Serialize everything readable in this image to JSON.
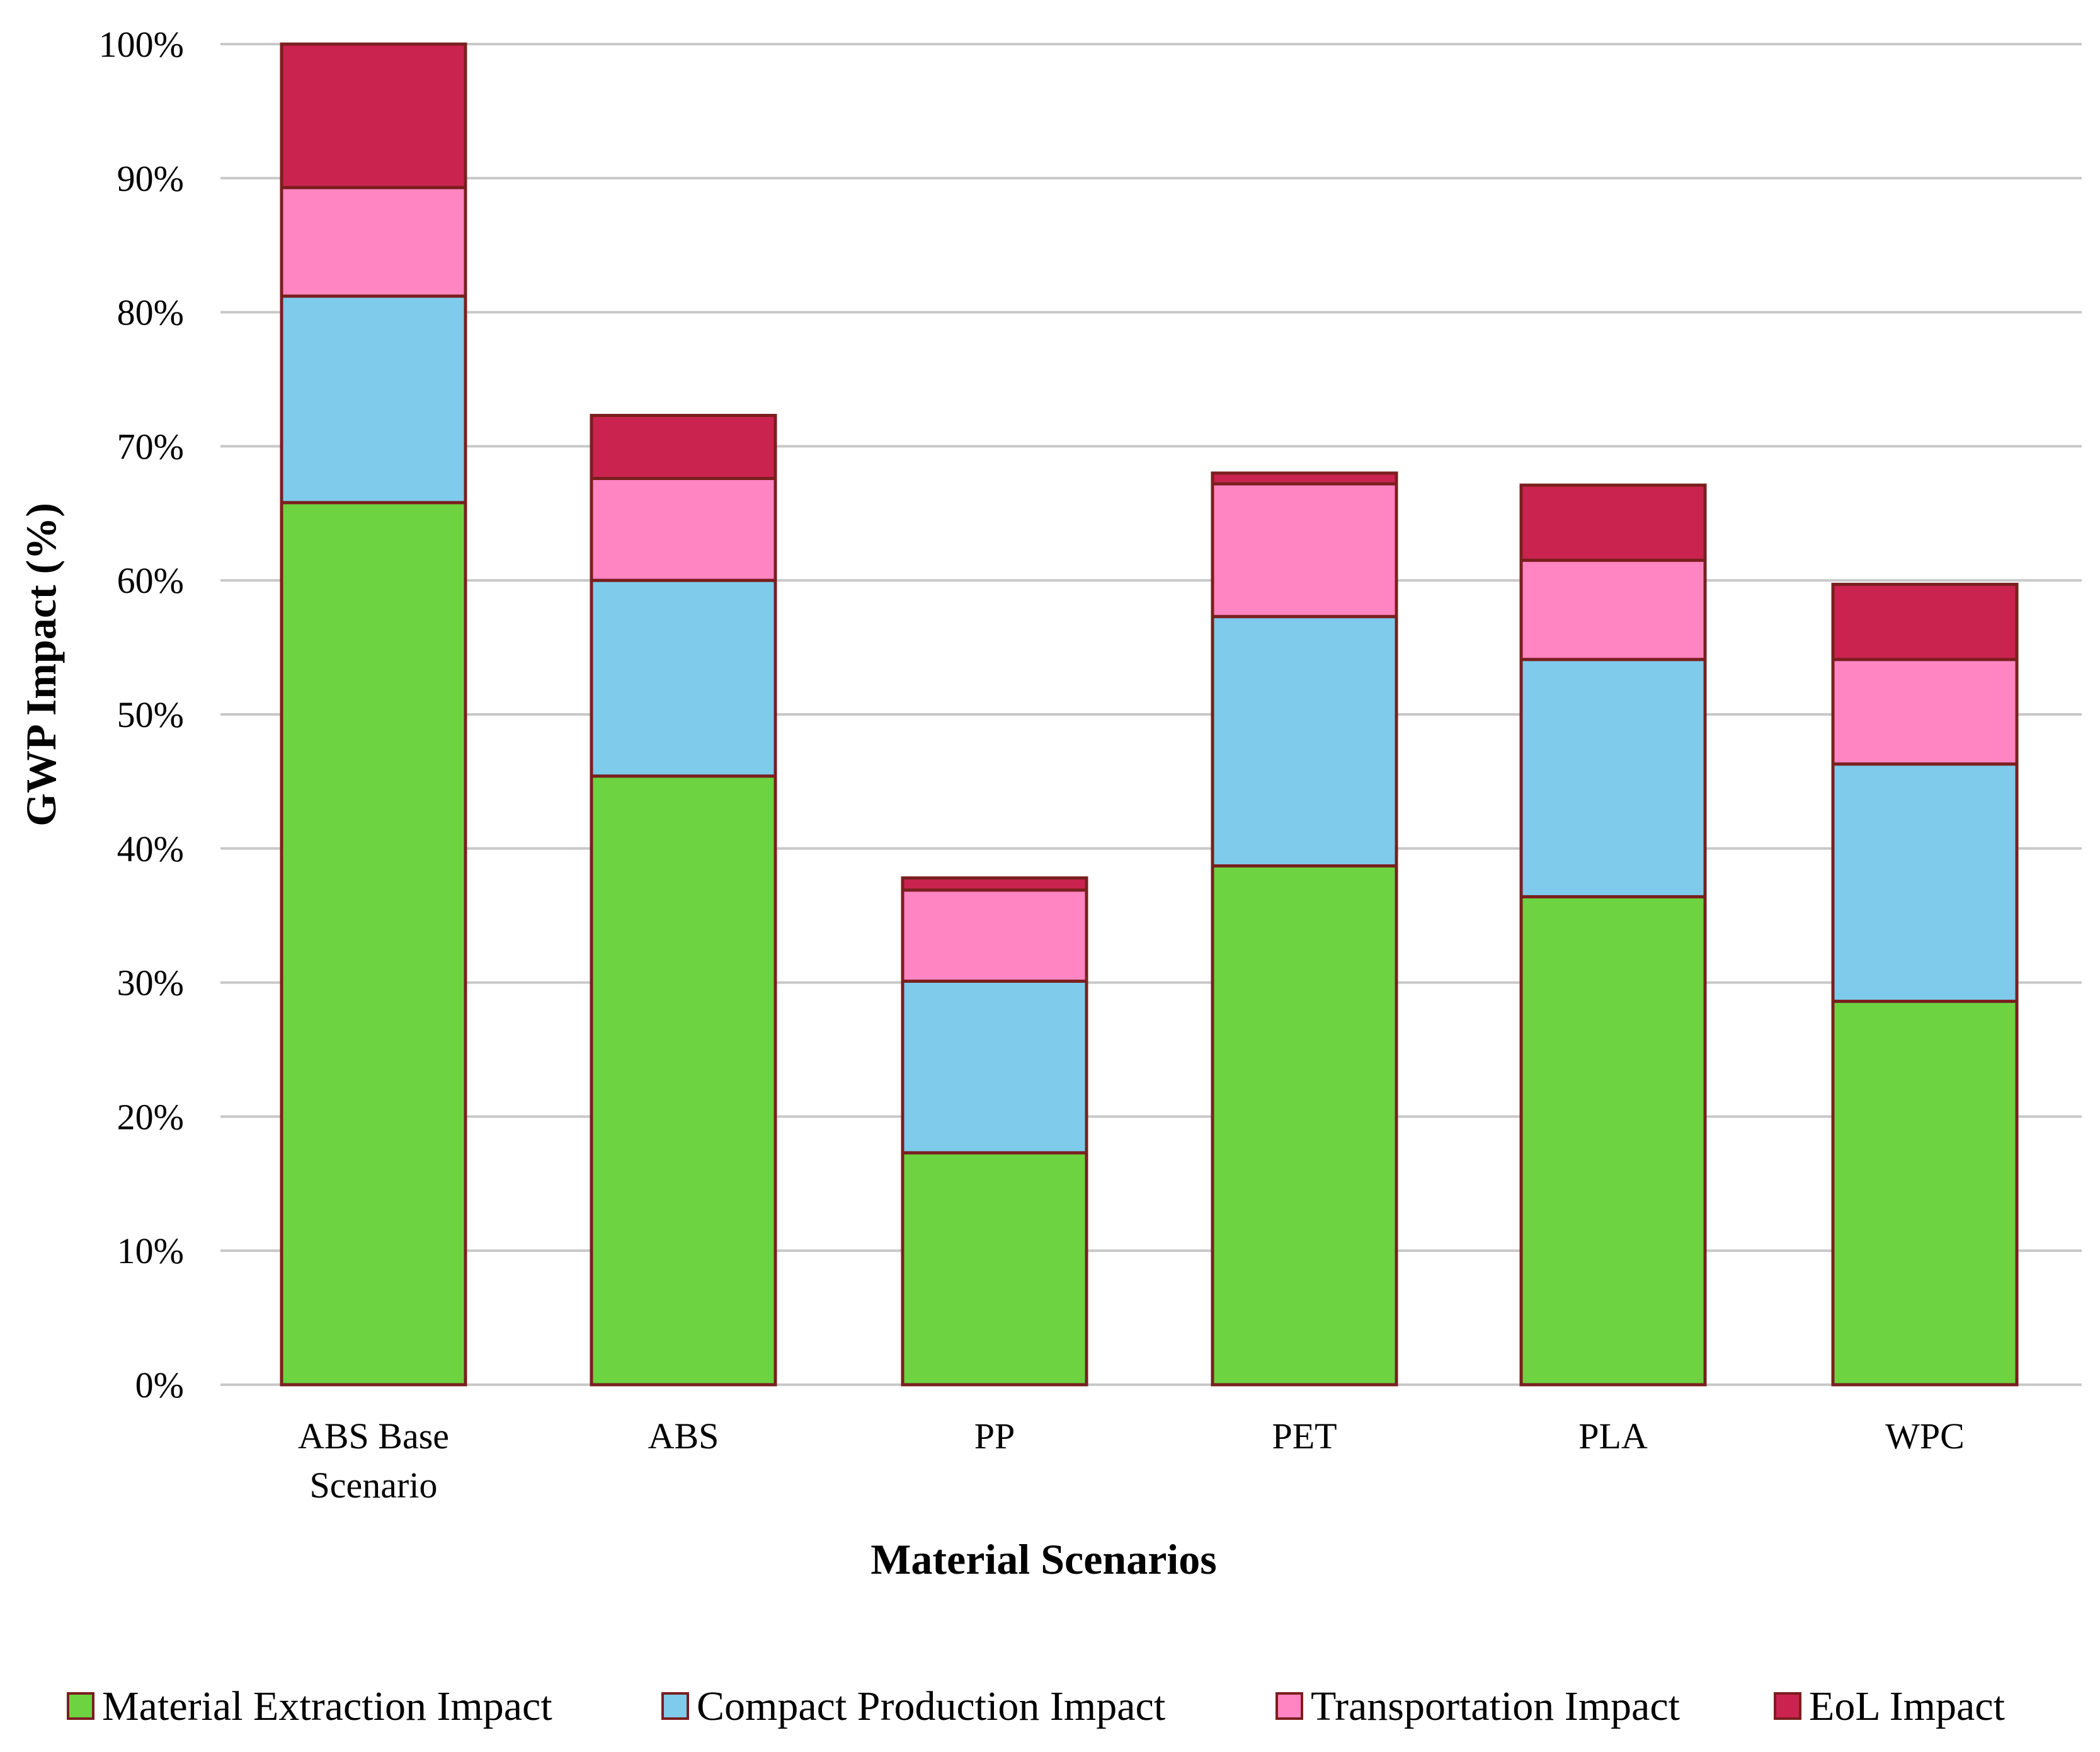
{
  "chart_data": {
    "type": "bar",
    "stacked": true,
    "title": "",
    "xlabel": "Material Scenarios",
    "ylabel": "GWP Impact (%)",
    "ylim": [
      0,
      100
    ],
    "yticks": [
      0,
      10,
      20,
      30,
      40,
      50,
      60,
      70,
      80,
      90,
      100
    ],
    "ytick_labels": [
      "0%",
      "10%",
      "20%",
      "30%",
      "40%",
      "50%",
      "60%",
      "70%",
      "80%",
      "90%",
      "100%"
    ],
    "grid": true,
    "legend_position": "bottom",
    "categories": [
      [
        "ABS Base",
        "Scenario"
      ],
      [
        "ABS"
      ],
      [
        "PP"
      ],
      [
        "PET"
      ],
      [
        "PLA"
      ],
      [
        "WPC"
      ]
    ],
    "series": [
      {
        "name": "Material Extraction Impact",
        "color": "#6DD341",
        "values": [
          65.8,
          45.4,
          17.3,
          38.7,
          36.4,
          28.6
        ]
      },
      {
        "name": "Compact Production Impact",
        "color": "#7FCBEB",
        "values": [
          15.4,
          14.6,
          12.8,
          18.6,
          17.7,
          17.7
        ]
      },
      {
        "name": "Transportation Impact",
        "color": "#FF85C2",
        "values": [
          8.1,
          7.6,
          6.8,
          9.9,
          7.4,
          7.8
        ]
      },
      {
        "name": "EoL Impact",
        "color": "#CB2350",
        "values": [
          10.7,
          4.7,
          0.9,
          0.8,
          5.6,
          5.6
        ]
      }
    ],
    "bar_outline_color": "#7A1F1F",
    "grid_color": "#C8C8C8"
  }
}
